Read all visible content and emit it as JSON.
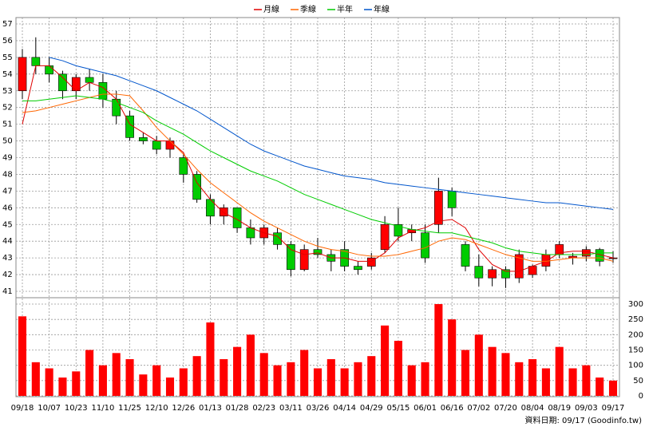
{
  "chart_data": {
    "type": "candlestick",
    "footer": "資料日期: 09/17 (Goodinfo.tw)",
    "categories": [
      "09/18",
      null,
      "10/07",
      null,
      "10/23",
      null,
      "11/10",
      null,
      "11/25",
      null,
      "12/10",
      null,
      "12/26",
      null,
      "01/13",
      null,
      "01/28",
      null,
      "02/23",
      null,
      "03/11",
      null,
      "03/26",
      null,
      "04/14",
      null,
      "04/29",
      null,
      "05/15",
      null,
      "06/01",
      null,
      "06/16",
      null,
      "07/02",
      null,
      "07/20",
      null,
      "08/04",
      null,
      "08/19",
      null,
      "09/03",
      null,
      "09/17"
    ],
    "open": [
      53,
      55,
      54.5,
      54,
      53,
      53.8,
      53.5,
      52.5,
      51.5,
      50.2,
      50,
      49.5,
      49,
      48,
      46.5,
      45.5,
      46,
      44.8,
      44.2,
      44.5,
      43.8,
      42.3,
      43.5,
      43.2,
      43.5,
      42.5,
      42.5,
      43.5,
      45,
      44.5,
      44.5,
      45,
      47,
      43.8,
      42.5,
      41.8,
      42.3,
      41.8,
      42,
      42.5,
      43.2,
      43,
      43.1,
      43.5,
      43
    ],
    "high": [
      55.5,
      56.2,
      55,
      54.2,
      54,
      54.3,
      54,
      53,
      51.8,
      50.5,
      50.3,
      50.2,
      49.2,
      48.2,
      46.8,
      46.2,
      46,
      45.3,
      45,
      44.8,
      44,
      43.8,
      44.2,
      43.5,
      44,
      42.8,
      43.3,
      45.5,
      46,
      45,
      45,
      47.8,
      47.2,
      44,
      43.2,
      42.5,
      42.5,
      43.5,
      42.6,
      43.5,
      44,
      43.3,
      43.7,
      43.6,
      43.4
    ],
    "low": [
      52.5,
      54,
      53.5,
      52.5,
      52.5,
      53,
      52,
      51,
      50,
      49.8,
      49.2,
      49,
      47.5,
      46.3,
      45,
      45,
      44.5,
      43.8,
      43.8,
      43.5,
      41.9,
      42.2,
      43,
      42.2,
      42.2,
      42,
      42.3,
      43.3,
      44,
      44,
      42.7,
      44.5,
      45.5,
      42.2,
      41.3,
      41.3,
      41.2,
      41.5,
      41.8,
      42.2,
      43,
      42.6,
      42.8,
      42.5,
      42.7
    ],
    "close": [
      55,
      54.5,
      54,
      53,
      53.8,
      53.5,
      52.5,
      51.5,
      50.2,
      50,
      49.5,
      50,
      48,
      46.5,
      45.5,
      46,
      44.8,
      44.2,
      44.8,
      43.8,
      42.3,
      43.5,
      43.2,
      42.8,
      42.5,
      42.3,
      43,
      45,
      44.3,
      44.7,
      43,
      47,
      46,
      42.5,
      41.8,
      42.3,
      41.8,
      43.2,
      42.5,
      43.2,
      43.8,
      43.1,
      43.5,
      42.8,
      43
    ],
    "up_color": "#ff0000",
    "down_color": "#00cc00",
    "series": [
      {
        "name": "月線",
        "color": "#e00000",
        "values": [
          51,
          54.5,
          54.5,
          53.8,
          53,
          53.5,
          53.2,
          52.5,
          51,
          50.5,
          50,
          50,
          49.3,
          47.5,
          46.5,
          45.7,
          45.3,
          44.8,
          44.5,
          44.3,
          43.5,
          43.2,
          43.3,
          43,
          43,
          42.8,
          42.8,
          43.3,
          44.2,
          44.6,
          44.8,
          45.2,
          45.3,
          44.8,
          43.5,
          42.6,
          42.2,
          42.2,
          42.5,
          42.8,
          43.3,
          43.4,
          43.4,
          43.2,
          43
        ]
      },
      {
        "name": "季線",
        "color": "#ff6600",
        "values": [
          51.7,
          51.8,
          52,
          52.2,
          52.4,
          52.6,
          52.8,
          52.8,
          52.7,
          51.8,
          50.8,
          50,
          49.2,
          48.3,
          47.5,
          46.9,
          46.3,
          45.7,
          45.2,
          44.8,
          44.4,
          44,
          43.7,
          43.5,
          43.4,
          43.2,
          43.1,
          43.1,
          43.2,
          43.4,
          43.6,
          44,
          44.2,
          44.1,
          43.8,
          43.5,
          43.2,
          43,
          42.8,
          42.8,
          42.9,
          43,
          43,
          43,
          42.8
        ]
      },
      {
        "name": "半年",
        "color": "#00cc00",
        "values": [
          52.4,
          52.4,
          52.5,
          52.6,
          52.7,
          52.6,
          52.5,
          52.3,
          52,
          51.7,
          51.2,
          50.8,
          50.4,
          49.9,
          49.4,
          49,
          48.6,
          48.2,
          47.9,
          47.6,
          47.2,
          46.8,
          46.5,
          46.2,
          45.9,
          45.6,
          45.3,
          45.1,
          44.9,
          44.7,
          44.6,
          44.5,
          44.5,
          44.3,
          44.1,
          43.9,
          43.6,
          43.4,
          43.3,
          43.2,
          43.2,
          43.2,
          43.2,
          43.3,
          43.3
        ]
      },
      {
        "name": "年線",
        "color": "#0055cc",
        "values": [
          null,
          null,
          55,
          54.8,
          54.5,
          54.3,
          54.1,
          53.9,
          53.6,
          53.3,
          53,
          52.6,
          52.2,
          51.8,
          51.3,
          50.8,
          50.3,
          49.8,
          49.4,
          49.1,
          48.8,
          48.5,
          48.3,
          48.1,
          47.9,
          47.8,
          47.7,
          47.5,
          47.4,
          47.3,
          47.2,
          47.1,
          47,
          46.9,
          46.8,
          46.7,
          46.6,
          46.5,
          46.4,
          46.3,
          46.3,
          46.2,
          46.1,
          46,
          45.9
        ]
      }
    ],
    "ylim": [
      41,
      57
    ],
    "yticks": [
      41,
      42,
      43,
      44,
      45,
      46,
      47,
      48,
      49,
      50,
      51,
      52,
      53,
      54,
      55,
      56,
      57
    ],
    "grid": true,
    "volume": {
      "color": "#ff0000",
      "ylim": [
        0,
        300
      ],
      "yticks": [
        0,
        50,
        100,
        150,
        200,
        250,
        300
      ],
      "values": [
        260,
        110,
        90,
        60,
        80,
        150,
        100,
        140,
        120,
        70,
        100,
        60,
        90,
        130,
        240,
        120,
        160,
        200,
        140,
        100,
        110,
        150,
        90,
        120,
        90,
        110,
        130,
        230,
        180,
        100,
        110,
        300,
        250,
        150,
        200,
        160,
        140,
        110,
        120,
        90,
        160,
        90,
        100,
        60,
        50
      ]
    }
  }
}
